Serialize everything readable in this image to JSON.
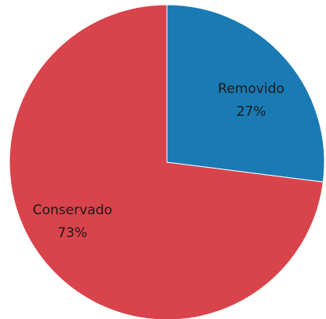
{
  "chart_data": {
    "type": "pie",
    "title": "",
    "slices": [
      {
        "label": "Removido",
        "value": 27,
        "value_label": "27%",
        "color": "#1a7ab4"
      },
      {
        "label": "Conservado",
        "value": 73,
        "value_label": "73%",
        "color": "#d9434b"
      }
    ],
    "start": "12 o'clock",
    "direction": "clockwise",
    "legend": "none"
  }
}
